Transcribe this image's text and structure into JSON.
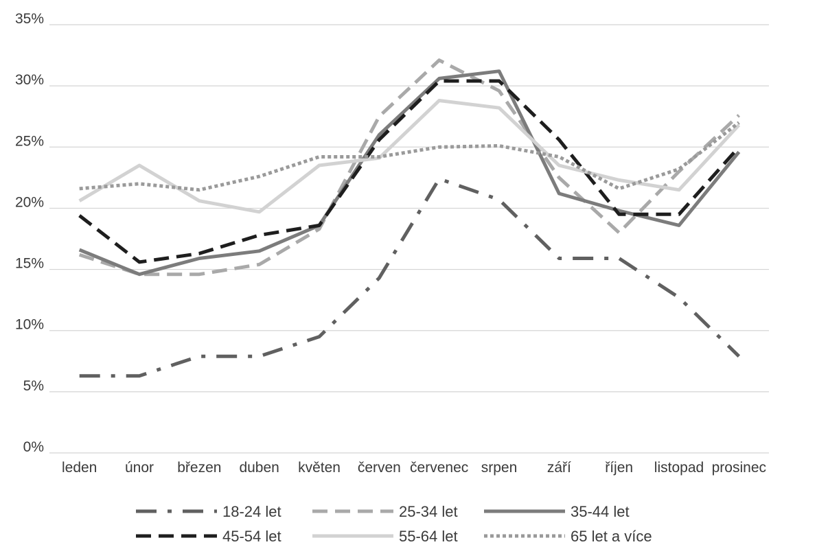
{
  "chart_data": {
    "type": "line",
    "title": "",
    "xlabel": "",
    "ylabel": "",
    "categories": [
      "leden",
      "únor",
      "březen",
      "duben",
      "květen",
      "červen",
      "červenec",
      "srpen",
      "září",
      "říjen",
      "listopad",
      "prosinec"
    ],
    "y_ticks": [
      "0%",
      "5%",
      "10%",
      "15%",
      "20%",
      "25%",
      "30%",
      "35%"
    ],
    "ylim": [
      0,
      35
    ],
    "y_unit": "%",
    "grid": "horizontal",
    "legend_position": "bottom",
    "series": [
      {
        "name": "18-24 let",
        "color": "#606060",
        "style": "dash-dot",
        "values": [
          6.3,
          6.3,
          7.9,
          7.9,
          9.5,
          14.3,
          22.4,
          20.7,
          15.9,
          15.9,
          12.7,
          7.9
        ]
      },
      {
        "name": "25-34 let",
        "color": "#a9a9a9",
        "style": "dashed",
        "values": [
          16.2,
          14.6,
          14.6,
          15.4,
          18.3,
          27.5,
          32.1,
          29.6,
          22.5,
          18.0,
          23.0,
          27.6
        ]
      },
      {
        "name": "35-44 let",
        "color": "#7c7c7c",
        "style": "solid",
        "values": [
          16.6,
          14.6,
          15.9,
          16.5,
          18.6,
          26.0,
          30.6,
          31.2,
          21.2,
          19.8,
          18.6,
          24.6
        ]
      },
      {
        "name": "45-54 let",
        "color": "#1e1e1e",
        "style": "dashed",
        "values": [
          19.4,
          15.6,
          16.3,
          17.8,
          18.6,
          25.6,
          30.4,
          30.4,
          25.6,
          19.5,
          19.5,
          25.0
        ]
      },
      {
        "name": "55-64 let",
        "color": "#d2d2d2",
        "style": "solid",
        "values": [
          20.6,
          23.5,
          20.6,
          19.7,
          23.5,
          24.1,
          28.8,
          28.2,
          23.5,
          22.3,
          21.5,
          26.8
        ]
      },
      {
        "name": "65 let a více",
        "color": "#9a9a9a",
        "style": "dotted",
        "values": [
          21.6,
          22.0,
          21.5,
          22.6,
          24.2,
          24.2,
          25.0,
          25.1,
          24.2,
          21.6,
          23.2,
          27.0
        ]
      }
    ]
  }
}
